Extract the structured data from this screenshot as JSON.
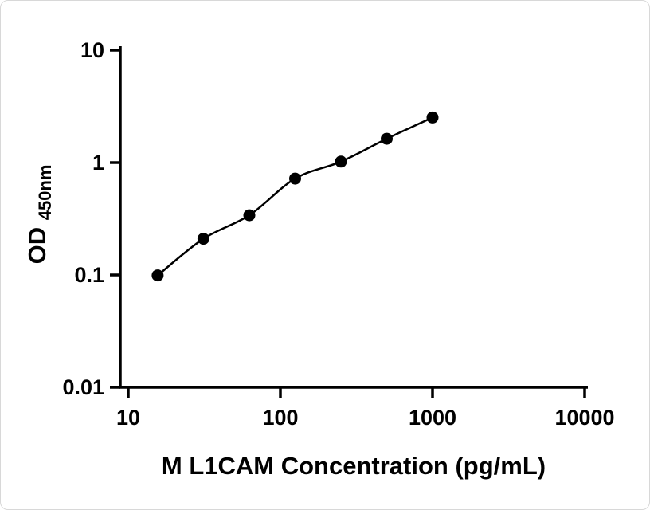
{
  "chart_data": {
    "type": "scatter",
    "title": "",
    "xlabel": "M L1CAM Concentration (pg/mL)",
    "ylabel_main": "OD",
    "ylabel_sub": "450nm",
    "x": [
      15.6,
      31.2,
      62.5,
      125,
      250,
      500,
      1000
    ],
    "y": [
      0.099,
      0.21,
      0.34,
      0.72,
      1.02,
      1.63,
      2.52
    ],
    "x_scale": "log",
    "y_scale": "log",
    "xlim": [
      10,
      10000
    ],
    "ylim": [
      0.01,
      10
    ],
    "x_ticks": [
      10,
      100,
      1000,
      10000
    ],
    "y_ticks": [
      0.01,
      0.1,
      1,
      10
    ],
    "x_tick_labels": [
      "10",
      "100",
      "1000",
      "10000"
    ],
    "y_tick_labels": [
      "0.01",
      "0.1",
      "1",
      "10"
    ],
    "grid": false,
    "legend": "none",
    "marker_color": "#000000",
    "line_color": "#000000",
    "background_color": "#ffffff",
    "curve_style": "smooth fit line through points"
  }
}
